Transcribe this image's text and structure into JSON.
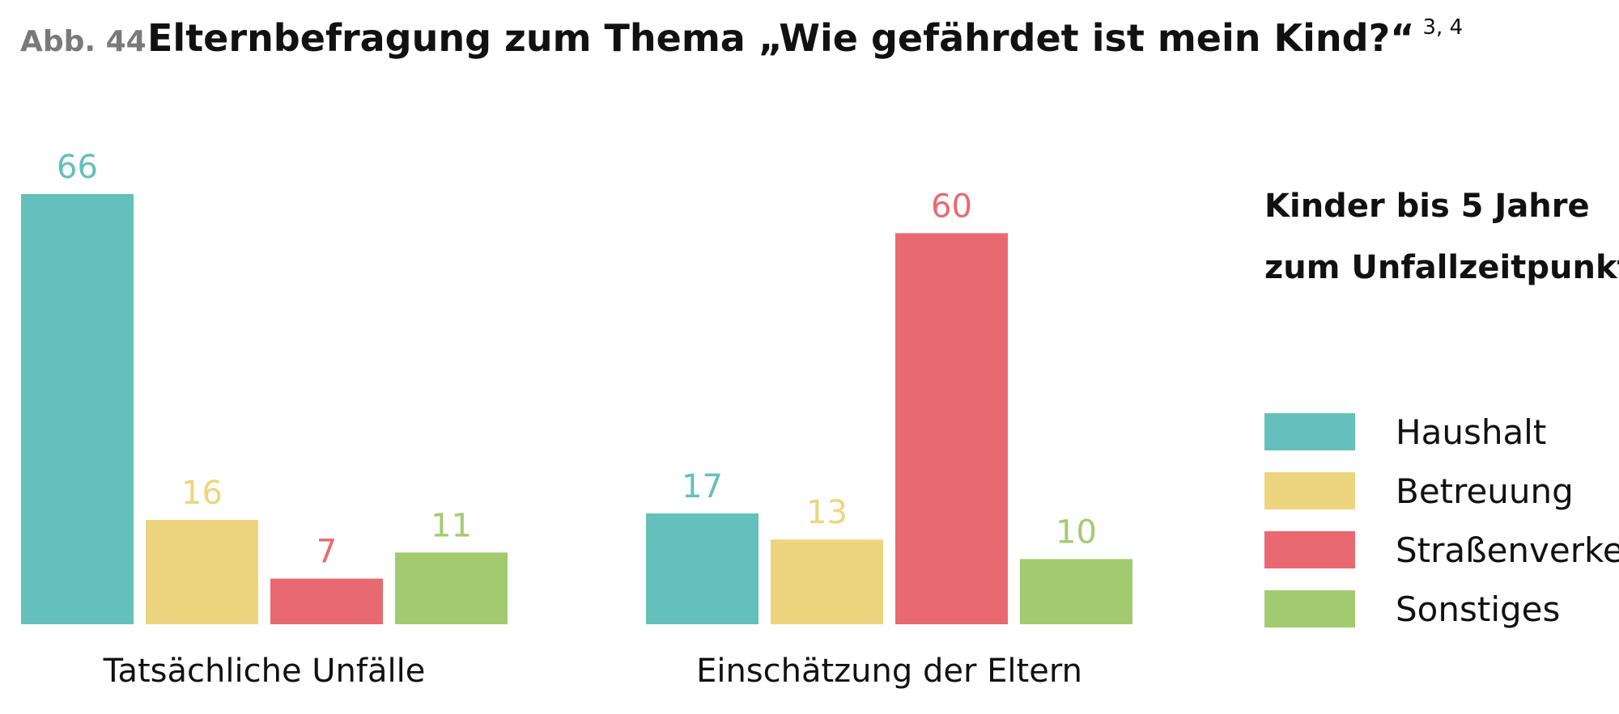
{
  "figure": {
    "label": "Abb. 44",
    "title": "Elternbefragung zum Thema „Wie gefährdet ist mein Kind?“",
    "title_superscript": "3, 4"
  },
  "chart_data": {
    "type": "bar",
    "title": "Elternbefragung zum Thema „Wie gefährdet ist mein Kind?“",
    "categories": [
      "Tatsächliche Unfälle",
      "Einschätzung der Eltern"
    ],
    "series": [
      {
        "name": "Haushalt",
        "color": "#64c0ba",
        "values": [
          66,
          17
        ]
      },
      {
        "name": "Betreuung",
        "color": "#ecd57e",
        "values": [
          16,
          13
        ]
      },
      {
        "name": "Straßenverkehr",
        "color": "#e96971",
        "values": [
          7,
          60
        ]
      },
      {
        "name": "Sonstiges",
        "color": "#a2cb6f",
        "values": [
          11,
          10
        ]
      }
    ],
    "legend": {
      "title_lines": [
        "Kinder bis 5 Jahre",
        "zum Unfallzeitpunkt"
      ],
      "position": "right"
    },
    "ylim": [
      0,
      66
    ],
    "grid": false,
    "xlabel": "",
    "ylabel": ""
  }
}
